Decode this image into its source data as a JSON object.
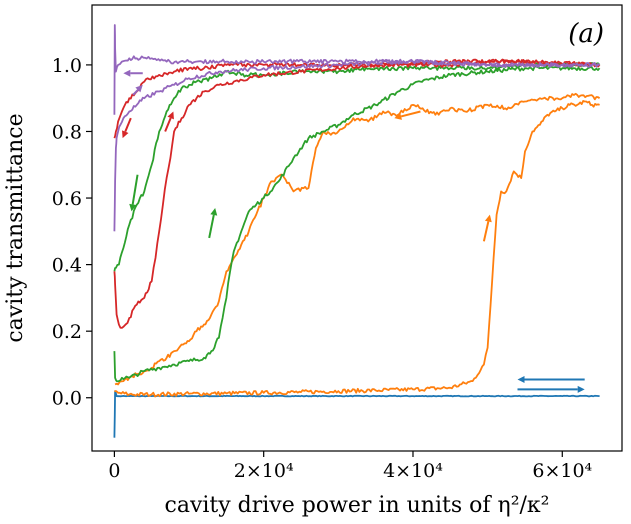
{
  "chart_data": {
    "type": "line",
    "title": "",
    "panel_label": "(a)",
    "xlabel": "cavity drive power in units of η²/κ²",
    "ylabel": "cavity transmittance",
    "xlim": [
      -3000,
      68000
    ],
    "ylim": [
      -0.16,
      1.18
    ],
    "x_ticks": [
      0,
      20000,
      40000,
      60000
    ],
    "x_tick_labels": [
      "0",
      "2×10⁴",
      "4×10⁴",
      "6×10⁴"
    ],
    "y_ticks": [
      0.0,
      0.2,
      0.4,
      0.6,
      0.8,
      1.0
    ],
    "y_tick_labels": [
      "0.0",
      "0.2",
      "0.4",
      "0.6",
      "0.8",
      "1.0"
    ],
    "grid": false,
    "legend": "none",
    "series": [
      {
        "name": "blue",
        "color": "#1f77b4",
        "x": [
          0,
          100,
          300,
          600,
          1000,
          2000,
          5000,
          10000,
          20000,
          30000,
          40000,
          50000,
          60000,
          65000
        ],
        "y": [
          -0.12,
          0.02,
          0.005,
          0.005,
          0.005,
          0.005,
          0.005,
          0.005,
          0.005,
          0.005,
          0.005,
          0.005,
          0.005,
          0.005
        ]
      },
      {
        "name": "orange-up",
        "color": "#ff7f0e",
        "x": [
          0,
          500,
          2000,
          5000,
          10000,
          15000,
          20000,
          25000,
          30000,
          35000,
          40000,
          45000,
          48000,
          49500,
          50000,
          50400,
          50800,
          51200,
          51800,
          52500,
          53500,
          54500,
          55000,
          56000,
          57000,
          58000,
          59000,
          60000,
          61000,
          62000,
          63000,
          64000,
          65000
        ],
        "y": [
          0.02,
          0.015,
          0.01,
          0.01,
          0.012,
          0.013,
          0.015,
          0.017,
          0.02,
          0.022,
          0.025,
          0.03,
          0.05,
          0.1,
          0.15,
          0.28,
          0.42,
          0.55,
          0.62,
          0.62,
          0.68,
          0.66,
          0.74,
          0.8,
          0.82,
          0.85,
          0.86,
          0.87,
          0.88,
          0.88,
          0.89,
          0.88,
          0.88
        ]
      },
      {
        "name": "orange-down",
        "color": "#ff7f0e",
        "x": [
          65000,
          62000,
          60000,
          57000,
          55000,
          53000,
          50000,
          47000,
          45000,
          43000,
          40000,
          38000,
          36000,
          34000,
          32000,
          30000,
          29000,
          28000,
          27000,
          26000,
          24000,
          22500,
          21000,
          20000,
          19000,
          18000,
          17000,
          16000,
          15000,
          14000,
          13000,
          12000,
          11000,
          10000,
          9000,
          8000,
          7000,
          6000,
          5000,
          4000,
          3000,
          2000,
          1200,
          500,
          100
        ],
        "y": [
          0.9,
          0.91,
          0.9,
          0.9,
          0.89,
          0.87,
          0.88,
          0.86,
          0.87,
          0.85,
          0.88,
          0.85,
          0.86,
          0.83,
          0.84,
          0.8,
          0.79,
          0.8,
          0.75,
          0.63,
          0.62,
          0.67,
          0.65,
          0.6,
          0.55,
          0.5,
          0.46,
          0.42,
          0.38,
          0.29,
          0.25,
          0.22,
          0.2,
          0.17,
          0.16,
          0.14,
          0.12,
          0.11,
          0.09,
          0.08,
          0.07,
          0.06,
          0.05,
          0.04,
          0.04
        ]
      },
      {
        "name": "green-up",
        "color": "#2ca02c",
        "x": [
          0,
          100,
          300,
          600,
          1000,
          2000,
          4000,
          6000,
          8000,
          10000,
          12000,
          13000,
          14000,
          14500,
          15000,
          15500,
          16000,
          17000,
          18000,
          19000,
          20000,
          22000,
          24000,
          26000,
          28000,
          30000,
          32000,
          35000,
          38000,
          41000,
          45000,
          50000,
          55000,
          60000,
          65000
        ],
        "y": [
          0.14,
          0.06,
          0.05,
          0.05,
          0.06,
          0.06,
          0.08,
          0.09,
          0.1,
          0.11,
          0.12,
          0.14,
          0.18,
          0.24,
          0.3,
          0.38,
          0.44,
          0.5,
          0.56,
          0.58,
          0.6,
          0.65,
          0.72,
          0.78,
          0.8,
          0.82,
          0.85,
          0.88,
          0.92,
          0.95,
          0.97,
          0.98,
          0.99,
          0.99,
          0.99
        ]
      },
      {
        "name": "green-down",
        "color": "#2ca02c",
        "x": [
          65000,
          60000,
          55000,
          50000,
          45000,
          40000,
          35000,
          30000,
          25000,
          20000,
          17000,
          15000,
          13000,
          11000,
          10000,
          9000,
          8000,
          7000,
          6000,
          5000,
          4000,
          3000,
          2000,
          1200,
          600,
          200,
          0
        ],
        "y": [
          1.0,
          1.0,
          1.0,
          0.99,
          0.99,
          0.99,
          0.99,
          0.98,
          0.98,
          0.97,
          0.97,
          0.98,
          0.96,
          0.95,
          0.94,
          0.93,
          0.9,
          0.86,
          0.8,
          0.7,
          0.62,
          0.58,
          0.52,
          0.45,
          0.4,
          0.39,
          0.38
        ]
      },
      {
        "name": "red-up",
        "color": "#d62728",
        "x": [
          0,
          100,
          300,
          600,
          1000,
          1500,
          2000,
          3000,
          4000,
          5000,
          5500,
          6000,
          6500,
          7000,
          7500,
          8000,
          9000,
          10000,
          11000,
          12000,
          14000,
          16000,
          18000,
          20000,
          25000,
          30000,
          35000,
          40000,
          45000,
          50000,
          55000,
          60000,
          65000
        ],
        "y": [
          0.38,
          0.34,
          0.25,
          0.22,
          0.21,
          0.22,
          0.24,
          0.28,
          0.3,
          0.35,
          0.42,
          0.5,
          0.58,
          0.66,
          0.72,
          0.8,
          0.84,
          0.88,
          0.9,
          0.92,
          0.94,
          0.95,
          0.96,
          0.97,
          0.98,
          0.99,
          1.0,
          1.0,
          1.0,
          1.01,
          1.01,
          1.0,
          1.0
        ]
      },
      {
        "name": "red-down",
        "color": "#d62728",
        "x": [
          65000,
          55000,
          45000,
          35000,
          25000,
          20000,
          15000,
          12000,
          10000,
          8000,
          6000,
          4000,
          3000,
          2000,
          1000,
          500,
          200,
          0
        ],
        "y": [
          1.0,
          1.01,
          1.01,
          1.0,
          1.0,
          1.0,
          1.0,
          0.99,
          0.99,
          0.98,
          0.97,
          0.95,
          0.92,
          0.9,
          0.86,
          0.83,
          0.8,
          0.78
        ]
      },
      {
        "name": "purple-up",
        "color": "#9467bd",
        "x": [
          0,
          100,
          200,
          300,
          500,
          800,
          1200,
          2000,
          3000,
          4000,
          6000,
          8000,
          10000,
          14000,
          20000,
          30000,
          40000,
          50000,
          60000,
          65000
        ],
        "y": [
          0.5,
          0.65,
          0.75,
          0.78,
          0.8,
          0.82,
          0.84,
          0.86,
          0.88,
          0.9,
          0.92,
          0.94,
          0.96,
          0.98,
          0.99,
          1.0,
          1.01,
          1.0,
          1.0,
          1.0
        ]
      },
      {
        "name": "purple-down",
        "color": "#9467bd",
        "x": [
          65000,
          60000,
          50000,
          40000,
          30000,
          20000,
          15000,
          10000,
          7000,
          5000,
          3000,
          2000,
          1000,
          500,
          200,
          100,
          50,
          0
        ],
        "y": [
          1.0,
          1.0,
          1.0,
          1.01,
          1.01,
          1.01,
          1.01,
          1.01,
          1.01,
          1.02,
          1.02,
          1.02,
          1.01,
          1.0,
          0.98,
          1.05,
          1.12,
          0.85
        ]
      }
    ],
    "annotations": [
      {
        "type": "arrow",
        "color": "#1f77b4",
        "x0": 63000,
        "y0": 0.055,
        "x1": 54000,
        "y1": 0.055
      },
      {
        "type": "arrow",
        "color": "#1f77b4",
        "x0": 54000,
        "y0": 0.025,
        "x1": 63000,
        "y1": 0.025
      },
      {
        "type": "arrow",
        "color": "#ff7f0e",
        "x0": 49500,
        "y0": 0.47,
        "x1": 50300,
        "y1": 0.55
      },
      {
        "type": "arrow",
        "color": "#ff7f0e",
        "x0": 41000,
        "y0": 0.86,
        "x1": 37500,
        "y1": 0.84
      },
      {
        "type": "arrow",
        "color": "#2ca02c",
        "x0": 12700,
        "y0": 0.48,
        "x1": 13500,
        "y1": 0.57
      },
      {
        "type": "arrow",
        "color": "#2ca02c",
        "x0": 3100,
        "y0": 0.67,
        "x1": 2300,
        "y1": 0.56
      },
      {
        "type": "arrow",
        "color": "#d62728",
        "x0": 6800,
        "y0": 0.8,
        "x1": 7900,
        "y1": 0.86
      },
      {
        "type": "arrow",
        "color": "#d62728",
        "x0": 2200,
        "y0": 0.84,
        "x1": 1100,
        "y1": 0.78
      },
      {
        "type": "arrow",
        "color": "#9467bd",
        "x0": 2500,
        "y0": 0.91,
        "x1": 3800,
        "y1": 0.94
      },
      {
        "type": "arrow",
        "color": "#9467bd",
        "x0": 3800,
        "y0": 0.975,
        "x1": 1200,
        "y1": 0.975
      }
    ]
  }
}
